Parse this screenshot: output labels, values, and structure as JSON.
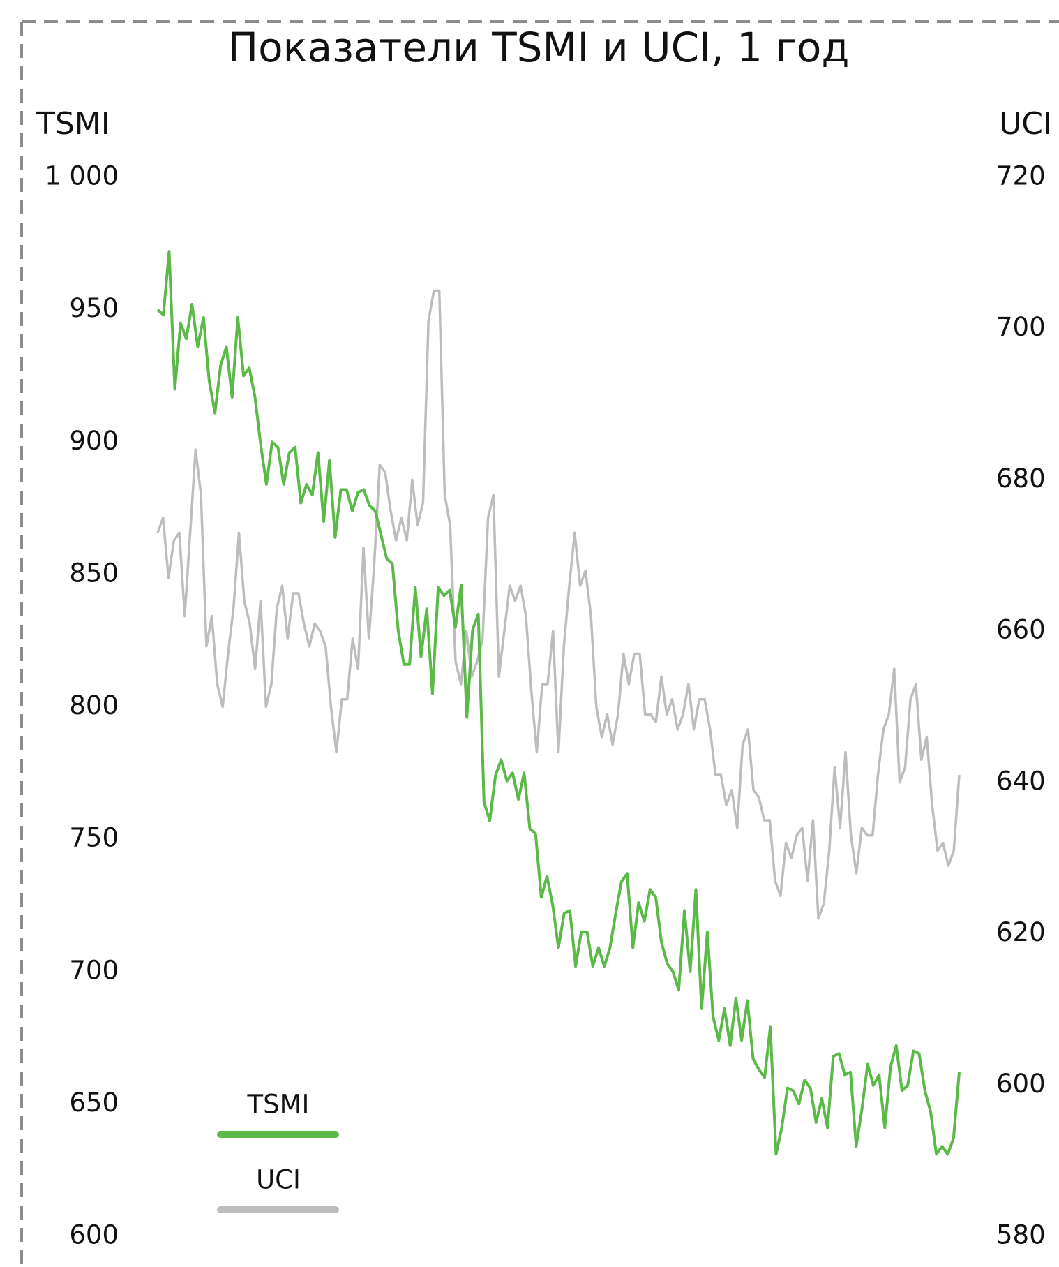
{
  "chart_data": {
    "type": "line",
    "title": "Показатели TSMI и UCI, 1 год",
    "y_label": "TSMI",
    "y2_label": "UCI",
    "ylim": [
      600,
      1000
    ],
    "yticks": [
      600,
      650,
      700,
      750,
      800,
      850,
      900,
      950,
      {
        "value": 1000,
        "label": "1 000"
      }
    ],
    "y2lim": [
      580,
      720
    ],
    "y2ticks": [
      580,
      600,
      620,
      640,
      660,
      680,
      700,
      720
    ],
    "legend": "lower left",
    "grid": false,
    "series": [
      {
        "name": "TSMI",
        "color": "#5ab947",
        "axis": "y",
        "values": [
          950,
          948,
          972,
          920,
          945,
          939,
          952,
          936,
          947,
          923,
          911,
          929,
          936,
          917,
          947,
          925,
          928,
          917,
          899,
          884,
          900,
          898,
          884,
          896,
          898,
          877,
          884,
          880,
          896,
          870,
          893,
          864,
          882,
          882,
          874,
          881,
          882,
          876,
          874,
          865,
          856,
          854,
          829,
          816,
          816,
          845,
          819,
          837,
          805,
          845,
          842,
          844,
          830,
          846,
          796,
          829,
          835,
          764,
          757,
          774,
          780,
          772,
          775,
          765,
          775,
          754,
          752,
          728,
          736,
          725,
          709,
          722,
          723,
          702,
          715,
          715,
          702,
          709,
          702,
          709,
          722,
          734,
          737,
          709,
          726,
          719,
          731,
          728,
          711,
          703,
          700,
          693,
          723,
          700,
          731,
          686,
          715,
          683,
          674,
          686,
          672,
          690,
          674,
          689,
          667,
          663,
          660,
          679,
          631,
          641,
          656,
          655,
          650,
          659,
          656,
          643,
          652,
          641,
          668,
          669,
          661,
          662,
          634,
          648,
          665,
          657,
          661,
          641,
          664,
          672,
          655,
          657,
          670,
          669,
          655,
          647,
          631,
          634,
          631,
          637,
          662
        ]
      },
      {
        "name": "UCI",
        "color": "#bdbdbd",
        "axis": "y2",
        "values": [
          673,
          675,
          667,
          672,
          673,
          662,
          673,
          684,
          678,
          658,
          662,
          653,
          650,
          657,
          663,
          673,
          664,
          661,
          655,
          664,
          650,
          653,
          663,
          666,
          659,
          665,
          665,
          661,
          658,
          661,
          660,
          658,
          650,
          644,
          651,
          651,
          659,
          655,
          671,
          659,
          669,
          682,
          681,
          676,
          672,
          675,
          672,
          680,
          674,
          677,
          701,
          705,
          705,
          678,
          674,
          656,
          653,
          660,
          654,
          656,
          659,
          675,
          678,
          654,
          660,
          666,
          664,
          666,
          662,
          652,
          644,
          653,
          653,
          660,
          644,
          658,
          666,
          673,
          666,
          668,
          662,
          650,
          646,
          649,
          645,
          649,
          657,
          653,
          657,
          657,
          649,
          649,
          648,
          654,
          649,
          651,
          647,
          649,
          653,
          647,
          651,
          651,
          647,
          641,
          641,
          637,
          639,
          634,
          645,
          647,
          639,
          638,
          635,
          635,
          627,
          625,
          632,
          630,
          633,
          634,
          627,
          635,
          622,
          624,
          631,
          642,
          634,
          644,
          633,
          628,
          634,
          633,
          633,
          641,
          647,
          649,
          655,
          640,
          642,
          651,
          653,
          643,
          646,
          637,
          631,
          632,
          629,
          631,
          641
        ]
      }
    ]
  }
}
